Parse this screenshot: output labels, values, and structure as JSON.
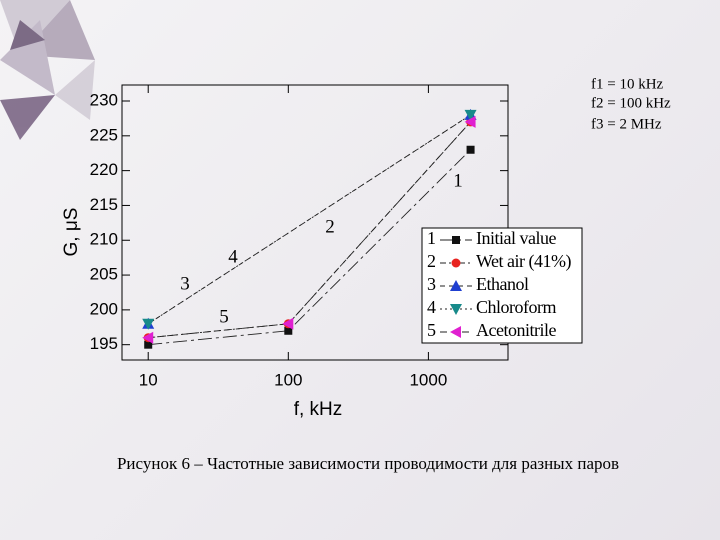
{
  "chart_data": {
    "type": "line",
    "caption": "Рисунок 6 – Частотные зависимости проводимости для разных паров",
    "xlabel": "f, kHz",
    "ylabel": "G, μS",
    "notes": [
      "f1 = 10 kHz",
      "f2 = 100 kHz",
      "f3 = 2 MHz"
    ],
    "xscale": "log",
    "xlim": [
      6.5,
      3700
    ],
    "xticks": [
      10,
      100,
      1000
    ],
    "ylim": [
      192.8,
      232.3
    ],
    "yticks": [
      195,
      200,
      205,
      210,
      215,
      220,
      225,
      230
    ],
    "series": [
      {
        "label": "1",
        "name": "Initial value",
        "color": "#111111",
        "marker": "square",
        "x": [
          10,
          100,
          2000
        ],
        "values": [
          195,
          197,
          223
        ]
      },
      {
        "label": "2",
        "name": "Wet air (41%)",
        "color": "#e8231f",
        "marker": "circle",
        "x": [
          10,
          100,
          2000
        ],
        "values": [
          196,
          198,
          227
        ]
      },
      {
        "label": "3",
        "name": "Ethanol",
        "color": "#1f3fd0",
        "marker": "triangle-up",
        "x": [
          10,
          2000
        ],
        "values": [
          198,
          228
        ]
      },
      {
        "label": "4",
        "name": "Chloroform",
        "color": "#178a8a",
        "marker": "triangle-down",
        "x": [
          10,
          2000
        ],
        "values": [
          198,
          228
        ]
      },
      {
        "label": "5",
        "name": "Acetonitrile",
        "color": "#e020d0",
        "marker": "triangle-left",
        "x": [
          10,
          100,
          2000
        ],
        "values": [
          196,
          198,
          227
        ]
      }
    ]
  }
}
